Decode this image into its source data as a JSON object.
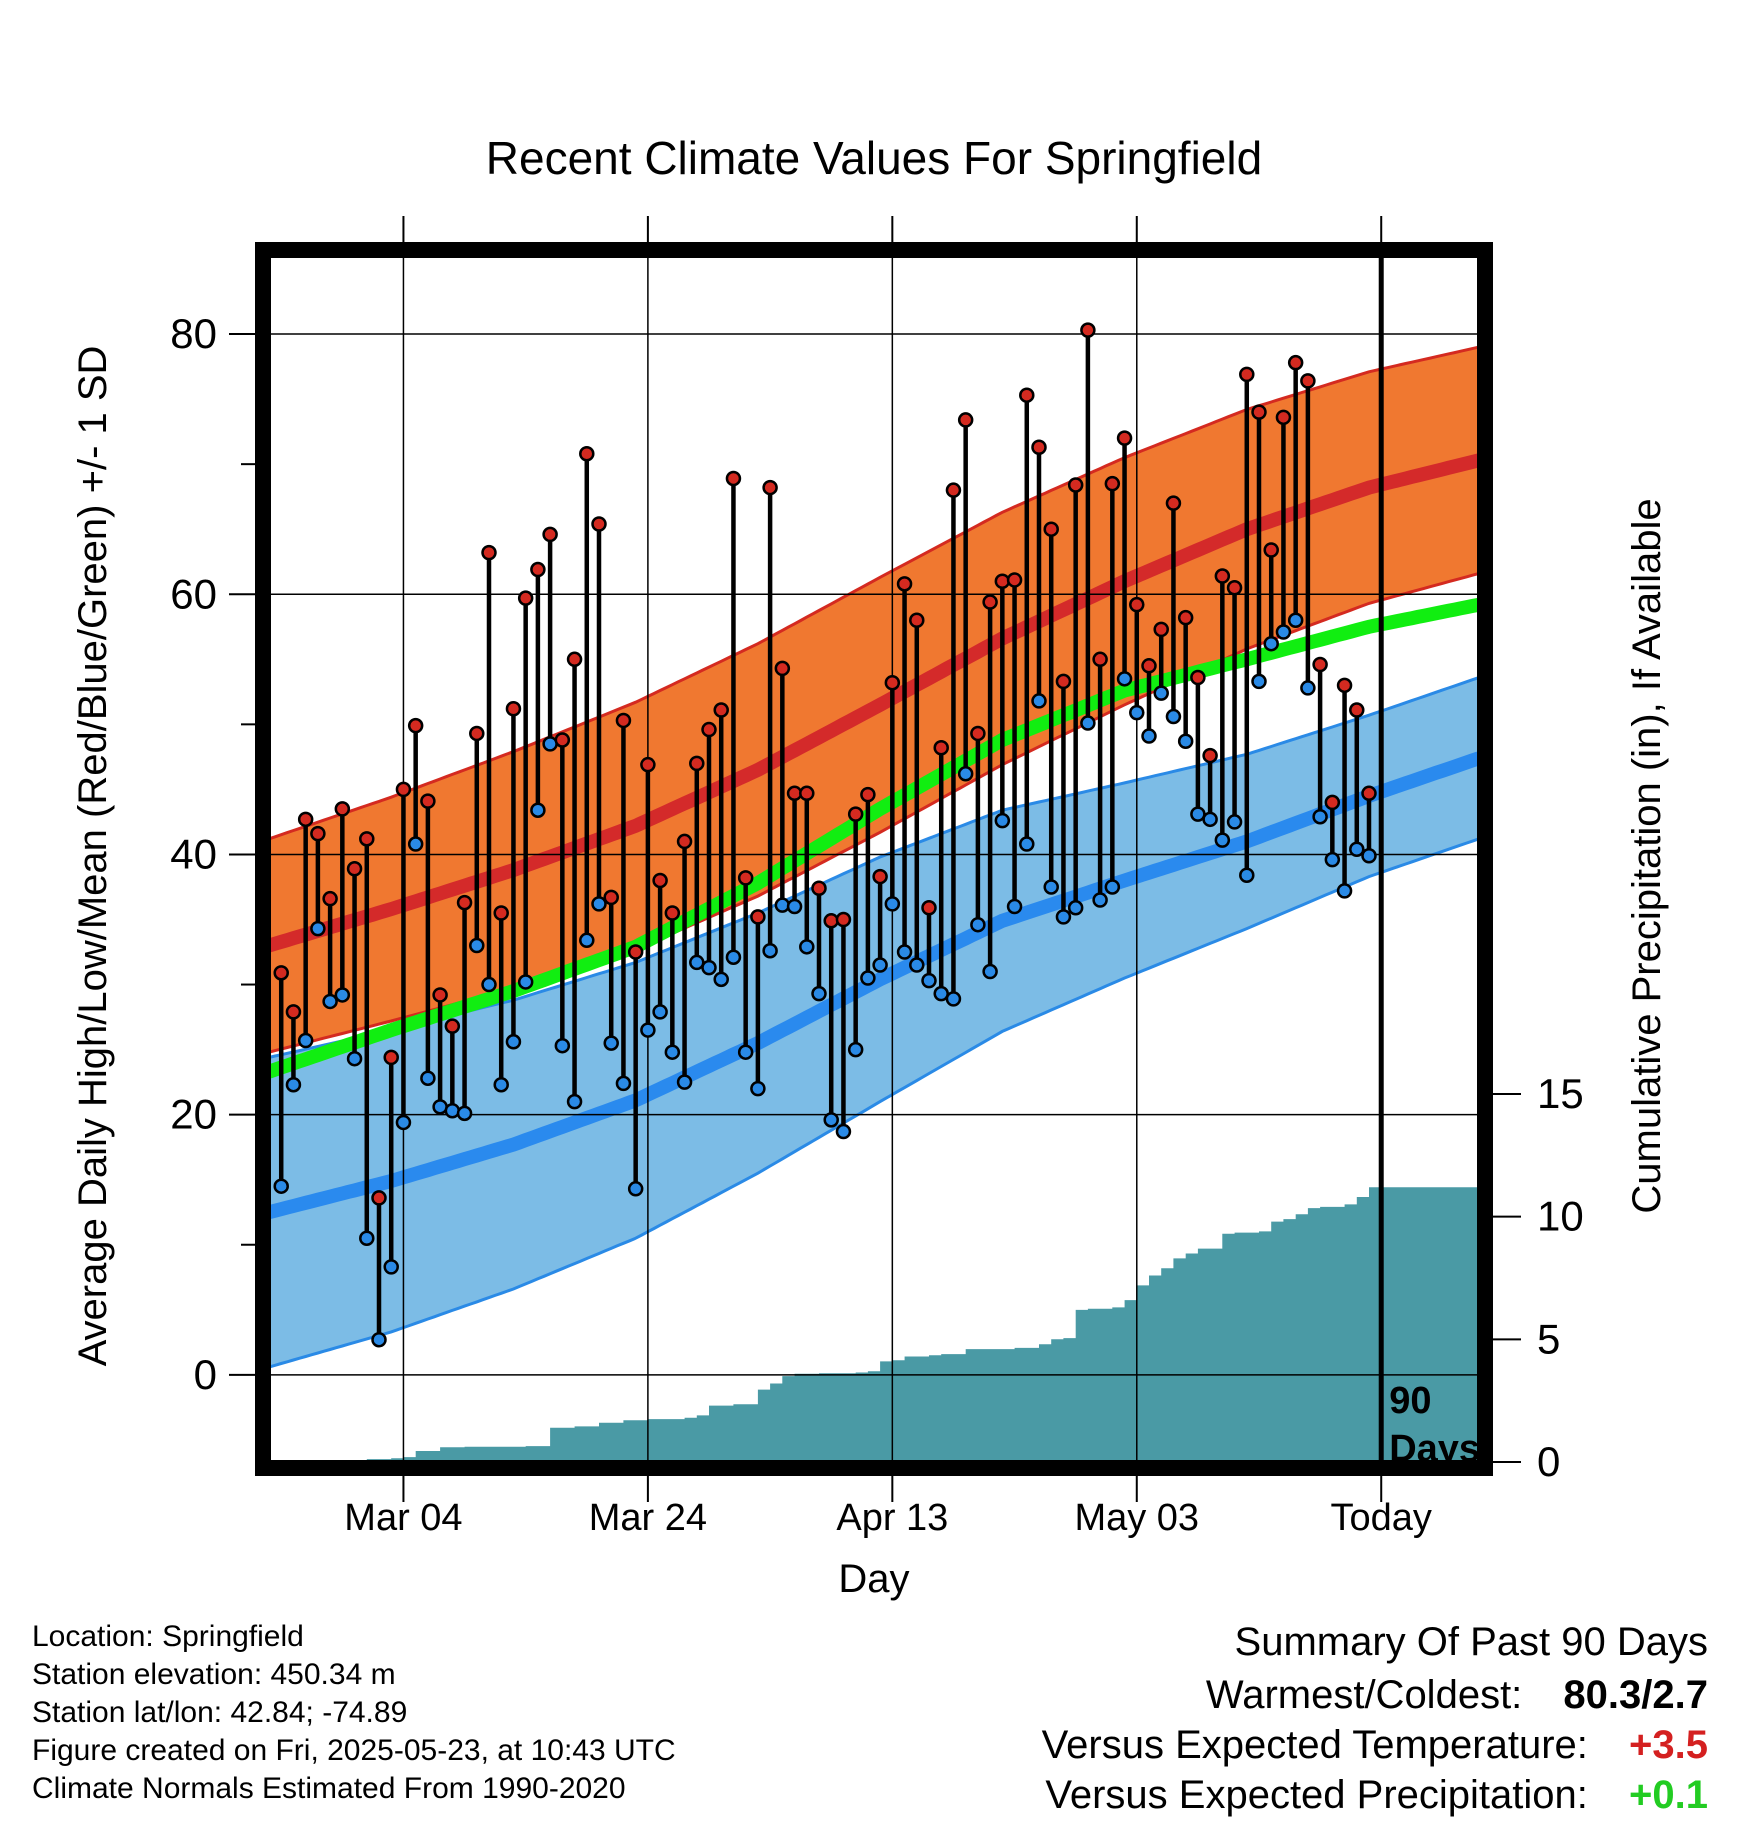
{
  "title": "Recent Climate Values For Springfield",
  "ylabel_left": "Average Daily High/Low/Mean (Red/Blue/Green) +/- 1 SD",
  "ylabel_right": "Cumulative Precipitation (in), If Available",
  "xlabel": "Day",
  "today_marker": "90\nDays",
  "footer": {
    "location": "Location: Springfield",
    "elevation": "Station elevation: 450.34 m",
    "latlon": "Station lat/lon: 42.84; -74.89",
    "created": "Figure created on Fri, 2025-05-23, at 10:43 UTC",
    "normals": "Climate Normals Estimated From 1990-2020"
  },
  "summary": {
    "title": "Summary Of Past 90 Days",
    "warm_cold_label": "Warmest/Coldest:",
    "warm_cold_value": "80.3/2.7",
    "temp_label": "Versus Expected Temperature:",
    "temp_value": "+3.5",
    "temp_color": "#d42020",
    "precip_label": "Versus Expected Precipitation:",
    "precip_value": "+0.1",
    "precip_color": "#22cc22"
  },
  "chart_data": {
    "type": "line",
    "x_ticks": [
      {
        "day": 11,
        "label": "Mar 04"
      },
      {
        "day": 31,
        "label": "Mar 24"
      },
      {
        "day": 51,
        "label": "Apr 13"
      },
      {
        "day": 71,
        "label": "May 03"
      },
      {
        "day": 91,
        "label": "Today"
      }
    ],
    "xlim": [
      0,
      99
    ],
    "today_day": 91,
    "ylim": [
      -6.7,
      86
    ],
    "y_ticks": [
      0,
      20,
      40,
      60,
      80
    ],
    "y2lim": [
      0,
      15
    ],
    "y2_ticks": [
      0,
      5,
      10,
      15
    ],
    "grid": true,
    "colors": {
      "high_band": "#f07830",
      "high_band_edge": "#d42a20",
      "high_mean": "#d42a2a",
      "low_band": "#7cbce6",
      "low_band_edge": "#2a8ae6",
      "low_mean": "#2a8aee",
      "mean": "#11ee11",
      "precip": "#4a9aa5",
      "high_dot": "#d42a20",
      "low_dot": "#2a8ae6"
    },
    "normals_days": [
      0,
      10,
      20,
      30,
      40,
      50,
      60,
      70,
      80,
      90,
      99
    ],
    "normal_high": [
      33.0,
      35.8,
      38.8,
      42.2,
      46.5,
      51.5,
      56.6,
      61.0,
      65.0,
      68.2,
      70.3
    ],
    "normal_high_sd": [
      8.2,
      8.6,
      9.1,
      9.5,
      9.7,
      9.8,
      9.7,
      9.5,
      9.2,
      8.9,
      8.7
    ],
    "normal_low": [
      12.5,
      14.9,
      17.7,
      21.1,
      25.5,
      30.4,
      34.9,
      38.0,
      41.0,
      44.5,
      47.4
    ],
    "normal_low_sd": [
      11.9,
      11.6,
      11.1,
      10.6,
      10.0,
      9.4,
      8.5,
      7.5,
      6.7,
      6.2,
      6.2
    ],
    "normal_mean": [
      23.3,
      26.5,
      29.5,
      32.9,
      37.8,
      43.5,
      48.8,
      52.6,
      55.0,
      57.5,
      59.2
    ],
    "obs_days": [
      1,
      2,
      3,
      4,
      5,
      6,
      7,
      8,
      9,
      10,
      11,
      12,
      13,
      14,
      15,
      16,
      17,
      18,
      19,
      20,
      21,
      22,
      23,
      24,
      25,
      26,
      27,
      28,
      29,
      30,
      31,
      32,
      33,
      34,
      35,
      36,
      37,
      38,
      39,
      40,
      41,
      42,
      43,
      44,
      45,
      46,
      47,
      48,
      49,
      50,
      51,
      52,
      53,
      54,
      55,
      56,
      57,
      58,
      59,
      60,
      61,
      62,
      63,
      64,
      65,
      66,
      67,
      68,
      69,
      70,
      71,
      72,
      73,
      74,
      75,
      76,
      77,
      78,
      79,
      80,
      81,
      82,
      83,
      84,
      85,
      86,
      87,
      88,
      89,
      90
    ],
    "obs_high": [
      30.9,
      27.9,
      42.7,
      41.6,
      36.6,
      43.5,
      38.9,
      41.2,
      13.6,
      24.4,
      45.0,
      49.9,
      44.1,
      29.2,
      26.8,
      36.3,
      49.3,
      63.2,
      35.5,
      51.2,
      59.7,
      61.9,
      64.6,
      48.8,
      55.0,
      70.8,
      65.4,
      36.7,
      50.3,
      32.5,
      46.9,
      38.0,
      35.5,
      41.0,
      47.0,
      49.6,
      51.1,
      68.9,
      38.2,
      35.2,
      68.2,
      54.3,
      44.7,
      44.7,
      37.4,
      34.9,
      35.0,
      43.1,
      44.6,
      38.3,
      53.2,
      60.8,
      58.0,
      35.9,
      48.2,
      68.0,
      73.4,
      49.3,
      59.4,
      61.0,
      61.1,
      75.3,
      71.3,
      65.0,
      53.3,
      68.4,
      80.3,
      55.0,
      68.5,
      72.0,
      59.2,
      54.5,
      57.3,
      67.0,
      58.2,
      53.6,
      47.6,
      61.4,
      60.5,
      76.9,
      74.0,
      63.4,
      73.6,
      77.8,
      76.4,
      54.6,
      44.0,
      53.0,
      51.1,
      44.7
    ],
    "obs_low": [
      14.5,
      22.3,
      25.7,
      34.3,
      28.7,
      29.2,
      24.3,
      10.5,
      2.7,
      8.3,
      19.4,
      40.8,
      22.8,
      20.6,
      20.3,
      20.1,
      33.0,
      30.0,
      22.3,
      25.6,
      30.2,
      43.4,
      48.5,
      25.3,
      21.0,
      33.4,
      36.2,
      25.5,
      22.4,
      14.3,
      26.5,
      27.9,
      24.8,
      22.5,
      31.7,
      31.3,
      30.4,
      32.1,
      24.8,
      22.0,
      32.6,
      36.1,
      36.0,
      32.9,
      29.3,
      19.6,
      18.7,
      25.0,
      30.5,
      31.5,
      36.2,
      32.5,
      31.5,
      30.3,
      29.3,
      28.9,
      46.2,
      34.6,
      31.0,
      42.6,
      36.0,
      40.8,
      51.8,
      37.5,
      35.2,
      35.9,
      50.1,
      36.5,
      37.5,
      53.5,
      50.9,
      49.1,
      52.4,
      50.6,
      48.7,
      43.1,
      42.7,
      41.1,
      42.5,
      38.4,
      53.3,
      56.2,
      57.1,
      58.0,
      52.8,
      42.9,
      39.6,
      37.2,
      40.4,
      39.9
    ],
    "precip_days": [
      0,
      6,
      8,
      10,
      11,
      12,
      14,
      16,
      20,
      21,
      23,
      25,
      27,
      29,
      31,
      34,
      35,
      36,
      38,
      40,
      41,
      42,
      43,
      45,
      48,
      49,
      50,
      51,
      52,
      54,
      55,
      57,
      60,
      61,
      63,
      64,
      65,
      66,
      67,
      69,
      70,
      71,
      72,
      73,
      74,
      75,
      76,
      77,
      78,
      79,
      80,
      81,
      82,
      83,
      84,
      85,
      86,
      87,
      88,
      89,
      90,
      91,
      99
    ],
    "precip": [
      0.0,
      0.05,
      0.12,
      0.15,
      0.2,
      0.45,
      0.6,
      0.62,
      0.62,
      0.65,
      1.4,
      1.45,
      1.6,
      1.7,
      1.75,
      1.8,
      1.9,
      2.3,
      2.35,
      2.95,
      3.2,
      3.5,
      3.6,
      3.62,
      3.65,
      3.7,
      4.1,
      4.15,
      4.3,
      4.35,
      4.4,
      4.6,
      4.6,
      4.65,
      4.8,
      5.0,
      5.05,
      6.2,
      6.25,
      6.3,
      6.6,
      7.2,
      7.6,
      7.9,
      8.3,
      8.5,
      8.7,
      8.7,
      9.3,
      9.35,
      9.35,
      9.4,
      9.8,
      9.9,
      10.1,
      10.35,
      10.4,
      10.4,
      10.5,
      10.8,
      11.2,
      11.2,
      11.2
    ]
  }
}
